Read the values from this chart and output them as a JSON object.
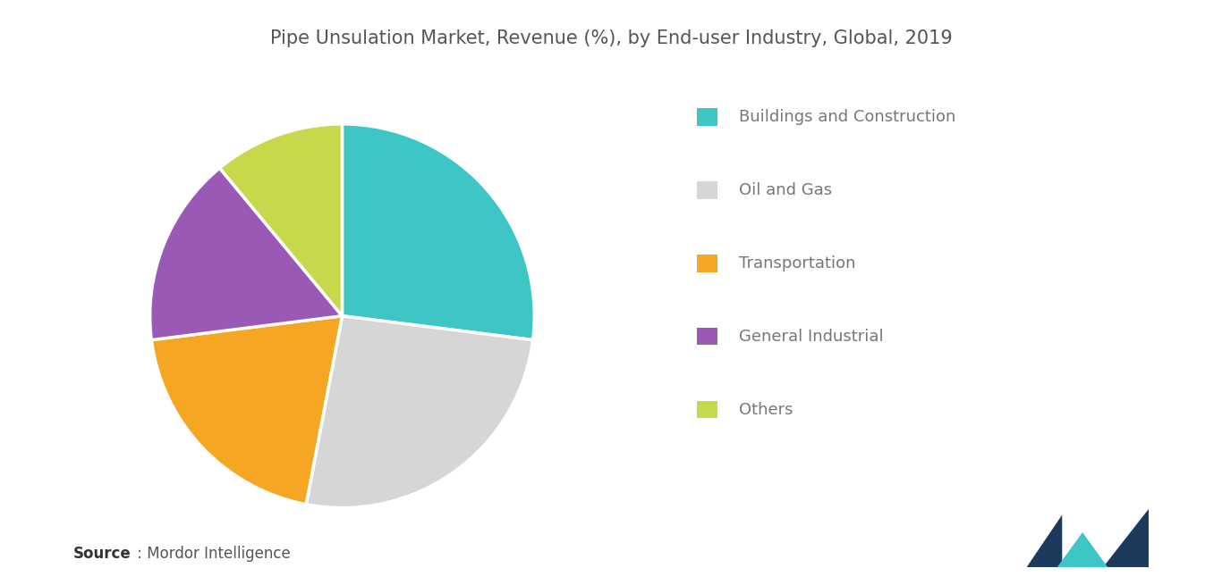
{
  "title": "Pipe Unsulation Market, Revenue (%), by End-user Industry, Global, 2019",
  "slices": [
    {
      "label": "Buildings and Construction",
      "value": 27,
      "color": "#3ec6c6"
    },
    {
      "label": "Oil and Gas",
      "value": 26,
      "color": "#d6d6d6"
    },
    {
      "label": "Transportation",
      "value": 20,
      "color": "#f5a623"
    },
    {
      "label": "General Industrial",
      "value": 16,
      "color": "#9b59b6"
    },
    {
      "label": "Others",
      "value": 11,
      "color": "#c8d84b"
    }
  ],
  "background_color": "#ffffff",
  "title_fontsize": 15,
  "legend_fontsize": 13,
  "source_bold": "Source",
  "source_regular": " : Mordor Intelligence"
}
